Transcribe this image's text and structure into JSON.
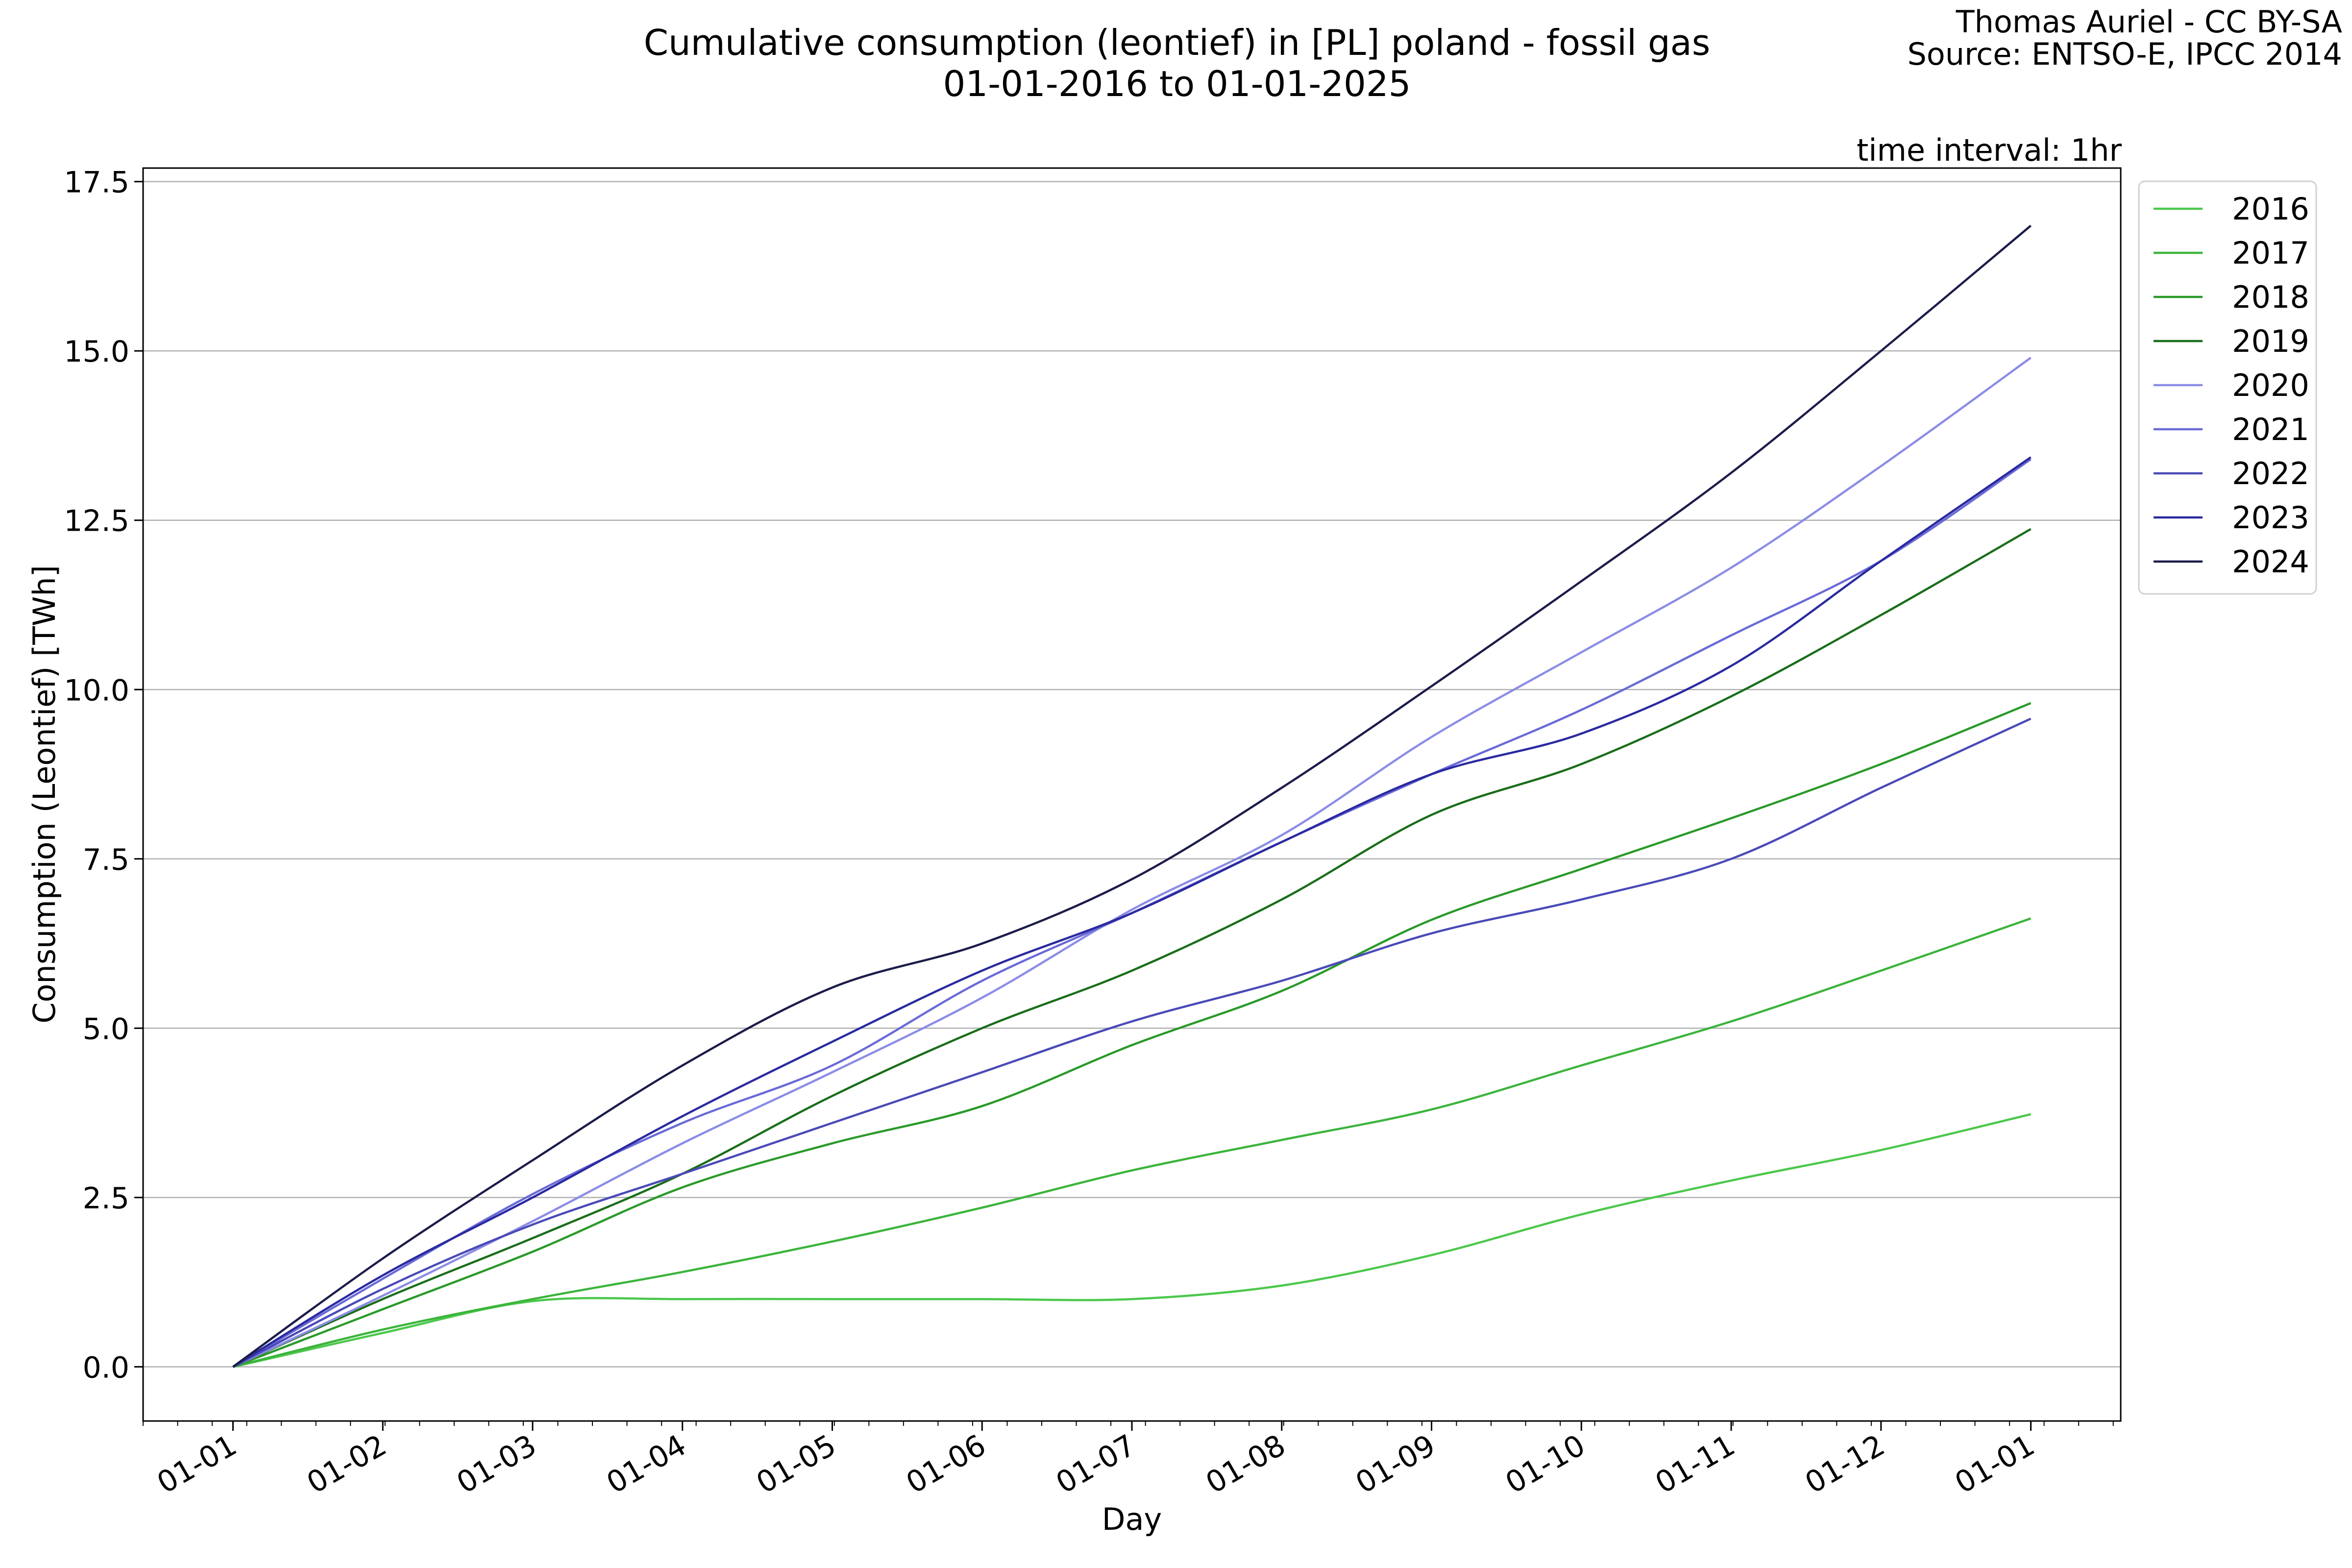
{
  "credits": {
    "author": "Thomas Auriel - CC BY-SA",
    "source": "Source: ENTSO-E, IPCC 2014"
  },
  "interval_note": "time interval: 1hr",
  "chart_data": {
    "type": "line",
    "title": "Cumulative consumption (leontief) in [PL] poland - fossil gas",
    "subtitle": "01-01-2016 to 01-01-2025",
    "xlabel": "Day",
    "ylabel": "Consumption (Leontief) [TWh]",
    "x_ticks": [
      "01-01",
      "01-02",
      "01-03",
      "01-04",
      "01-05",
      "01-06",
      "01-07",
      "01-08",
      "01-09",
      "01-10",
      "01-11",
      "01-12",
      "01-01"
    ],
    "y_ticks": [
      "0.0",
      "2.5",
      "5.0",
      "7.5",
      "10.0",
      "12.5",
      "15.0",
      "17.5"
    ],
    "ylim": [
      -0.8,
      17.7
    ],
    "xlim_months": [
      -0.6,
      12.6
    ],
    "grid": "horizontal",
    "legend_position": "right-outside-top",
    "x": [
      0,
      1,
      2,
      3,
      4,
      5,
      6,
      7,
      8,
      9,
      10,
      11,
      12
    ],
    "series": [
      {
        "name": "2016",
        "color": "#4cc84c",
        "values": [
          0,
          0.5,
          0.97,
          1.0,
          1.0,
          1.0,
          1.0,
          1.2,
          1.65,
          2.25,
          2.75,
          3.2,
          3.73
        ]
      },
      {
        "name": "2017",
        "color": "#3cb43c",
        "values": [
          0,
          0.55,
          1.0,
          1.4,
          1.85,
          2.35,
          2.9,
          3.35,
          3.8,
          4.45,
          5.1,
          5.85,
          6.62
        ]
      },
      {
        "name": "2018",
        "color": "#2a9a2a",
        "values": [
          0,
          0.85,
          1.7,
          2.65,
          3.3,
          3.85,
          4.75,
          5.55,
          6.6,
          7.35,
          8.1,
          8.9,
          9.8
        ]
      },
      {
        "name": "2019",
        "color": "#1a6e1a",
        "values": [
          0,
          1.0,
          1.9,
          2.85,
          4.0,
          5.0,
          5.85,
          6.9,
          8.15,
          8.9,
          9.9,
          11.1,
          12.37
        ]
      },
      {
        "name": "2020",
        "color": "#8c8ce6",
        "values": [
          0,
          1.05,
          2.15,
          3.3,
          4.35,
          5.45,
          6.75,
          7.85,
          9.3,
          10.55,
          11.8,
          13.3,
          14.9
        ]
      },
      {
        "name": "2021",
        "color": "#6a6ad8",
        "values": [
          0,
          1.3,
          2.55,
          3.6,
          4.45,
          5.7,
          6.7,
          7.75,
          8.75,
          9.7,
          10.8,
          11.9,
          13.4
        ]
      },
      {
        "name": "2022",
        "color": "#4a4ab8",
        "values": [
          0,
          1.15,
          2.1,
          2.85,
          3.6,
          4.35,
          5.1,
          5.7,
          6.4,
          6.9,
          7.5,
          8.55,
          9.57
        ]
      },
      {
        "name": "2023",
        "color": "#2a2aa0",
        "values": [
          0,
          1.35,
          2.5,
          3.7,
          4.8,
          5.85,
          6.7,
          7.75,
          8.75,
          9.35,
          10.35,
          11.9,
          13.43
        ]
      },
      {
        "name": "2024",
        "color": "#1c1c4a",
        "values": [
          0,
          1.6,
          3.05,
          4.45,
          5.6,
          6.25,
          7.2,
          8.55,
          10.05,
          11.6,
          13.2,
          15.0,
          16.85
        ]
      }
    ]
  }
}
